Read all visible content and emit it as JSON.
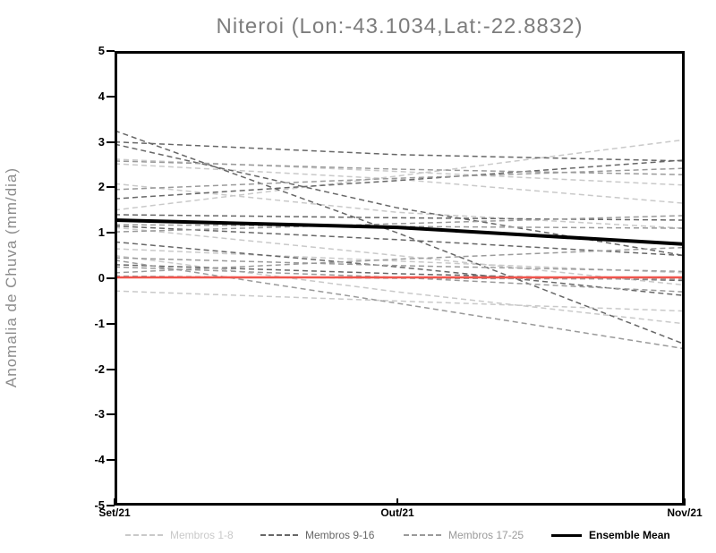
{
  "title": "Niteroi (Lon:-43.1034,Lat:-22.8832)",
  "chart_data": {
    "type": "line",
    "title": "Niteroi (Lon:-43.1034,Lat:-22.8832)",
    "xlabel": "",
    "ylabel": "Anomalia de Chuva (mm/dia)",
    "x_categories": [
      "Set/21",
      "Out/21",
      "Nov/21"
    ],
    "y_ticks": [
      5,
      4,
      3,
      2,
      1,
      0,
      -1,
      -2,
      -3,
      -4,
      -5
    ],
    "ylim": [
      -5,
      5
    ],
    "grid": false,
    "legend_position": "bottom",
    "line_style_members": "dashed",
    "groups": [
      {
        "name": "Membros 1-8",
        "color": "#c9c9c9",
        "members": [
          [
            2.62,
            2.35,
            2.05
          ],
          [
            2.52,
            2.18,
            1.65
          ],
          [
            2.08,
            1.45,
            1.1
          ],
          [
            1.5,
            2.25,
            3.05
          ],
          [
            0.65,
            0.38,
            0.12
          ],
          [
            1.12,
            0.5,
            -0.15
          ],
          [
            -0.28,
            -0.5,
            -0.72
          ],
          [
            0.5,
            -0.3,
            -1.0
          ]
        ]
      },
      {
        "name": "Membros 9-16",
        "color": "#676767",
        "members": [
          [
            3.25,
            1.0,
            -1.45
          ],
          [
            2.95,
            1.55,
            0.5
          ],
          [
            3.0,
            2.72,
            2.58
          ],
          [
            1.75,
            2.15,
            2.6
          ],
          [
            1.4,
            1.33,
            1.28
          ],
          [
            1.15,
            0.85,
            0.5
          ],
          [
            0.8,
            0.25,
            -0.38
          ],
          [
            0.3,
            0.1,
            -0.05
          ]
        ]
      },
      {
        "name": "Membros 17-25",
        "color": "#9a9a9a",
        "members": [
          [
            2.58,
            2.4,
            2.28
          ],
          [
            1.95,
            2.2,
            2.42
          ],
          [
            1.18,
            1.14,
            1.1
          ],
          [
            1.02,
            1.2,
            1.38
          ],
          [
            0.45,
            0.28,
            0.15
          ],
          [
            0.25,
            0.02,
            -0.3
          ],
          [
            0.12,
            0.42,
            0.68
          ],
          [
            0.05,
            0.0,
            -0.02
          ],
          [
            0.4,
            -0.55,
            -1.55
          ]
        ]
      }
    ],
    "ensemble_mean": {
      "name": "Ensemble Mean",
      "color": "#000000",
      "values": [
        1.28,
        1.12,
        0.75
      ]
    },
    "zero_reference_line": {
      "color": "#f0544c",
      "values": [
        0.02,
        0.02,
        0.02
      ]
    }
  },
  "legend": {
    "entries": [
      {
        "label": "Membros 1-8",
        "color": "#c9c9c9",
        "style": "dashed"
      },
      {
        "label": "Membros 9-16",
        "color": "#676767",
        "style": "dashed"
      },
      {
        "label": "Membros 17-25",
        "color": "#9a9a9a",
        "style": "dashed"
      },
      {
        "label": "Ensemble Mean",
        "color": "#000000",
        "style": "solid"
      }
    ]
  }
}
